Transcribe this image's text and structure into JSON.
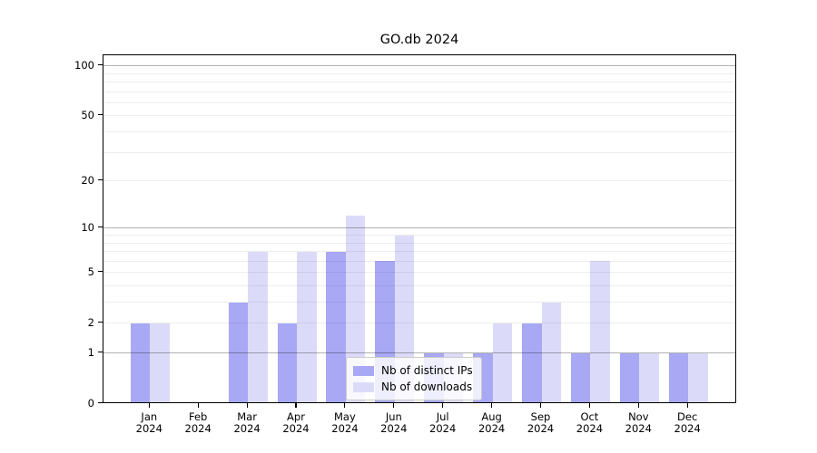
{
  "chart_data": {
    "type": "bar",
    "title": "GO.db 2024",
    "categories": [
      "Jan",
      "Feb",
      "Mar",
      "Apr",
      "May",
      "Jun",
      "Jul",
      "Aug",
      "Sep",
      "Oct",
      "Nov",
      "Dec"
    ],
    "category_sublabel": "2024",
    "series": [
      {
        "name": "Nb of distinct IPs",
        "color": "#a8a8f5",
        "values": [
          2,
          0,
          3,
          2,
          7,
          6,
          1,
          1,
          2,
          1,
          1,
          1
        ]
      },
      {
        "name": "Nb of downloads",
        "color": "#dbdbf9",
        "values": [
          2,
          0,
          7,
          7,
          12,
          9,
          1,
          2,
          3,
          6,
          1,
          1
        ]
      }
    ],
    "yaxis": {
      "scale": "log10(1+x)",
      "tick_labels": [
        "0",
        "1",
        "2",
        "5",
        "10",
        "20",
        "50",
        "100"
      ],
      "tick_values": [
        0,
        1,
        2,
        5,
        10,
        20,
        50,
        100
      ],
      "major_gridlines": [
        1,
        10,
        100
      ],
      "minor_gridlines": [
        2,
        3,
        4,
        5,
        6,
        7,
        8,
        9,
        20,
        30,
        40,
        50,
        60,
        70,
        80,
        90
      ],
      "ymin": 0,
      "ymax": 115
    },
    "xaxis": {
      "label": "",
      "tick_count": 12
    },
    "legend": {
      "position": "bottom-center",
      "entries": [
        "Nb of distinct IPs",
        "Nb of downloads"
      ]
    },
    "grid": "on"
  }
}
